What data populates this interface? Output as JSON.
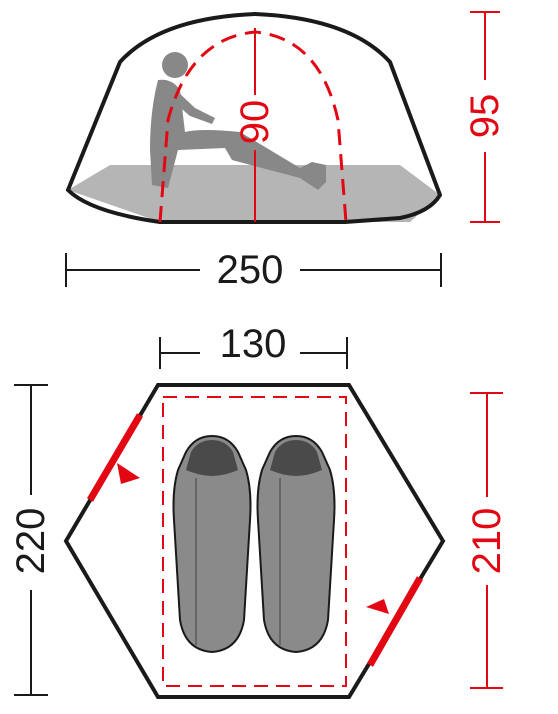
{
  "side_view": {
    "width_label": "250",
    "height_label": "95",
    "inner_height_label": "90"
  },
  "top_view": {
    "width_label": "130",
    "length_label": "220",
    "inner_length_label": "210",
    "sleeping_bags": 2,
    "doors": 2
  },
  "colors": {
    "outline": "#1a1a1a",
    "dimension_red": "#e30613",
    "floor_gray": "#b5b5b5",
    "figure_gray": "#888888",
    "bag_gray": "#8a8a8a",
    "bag_dark": "#4a4a4a"
  }
}
